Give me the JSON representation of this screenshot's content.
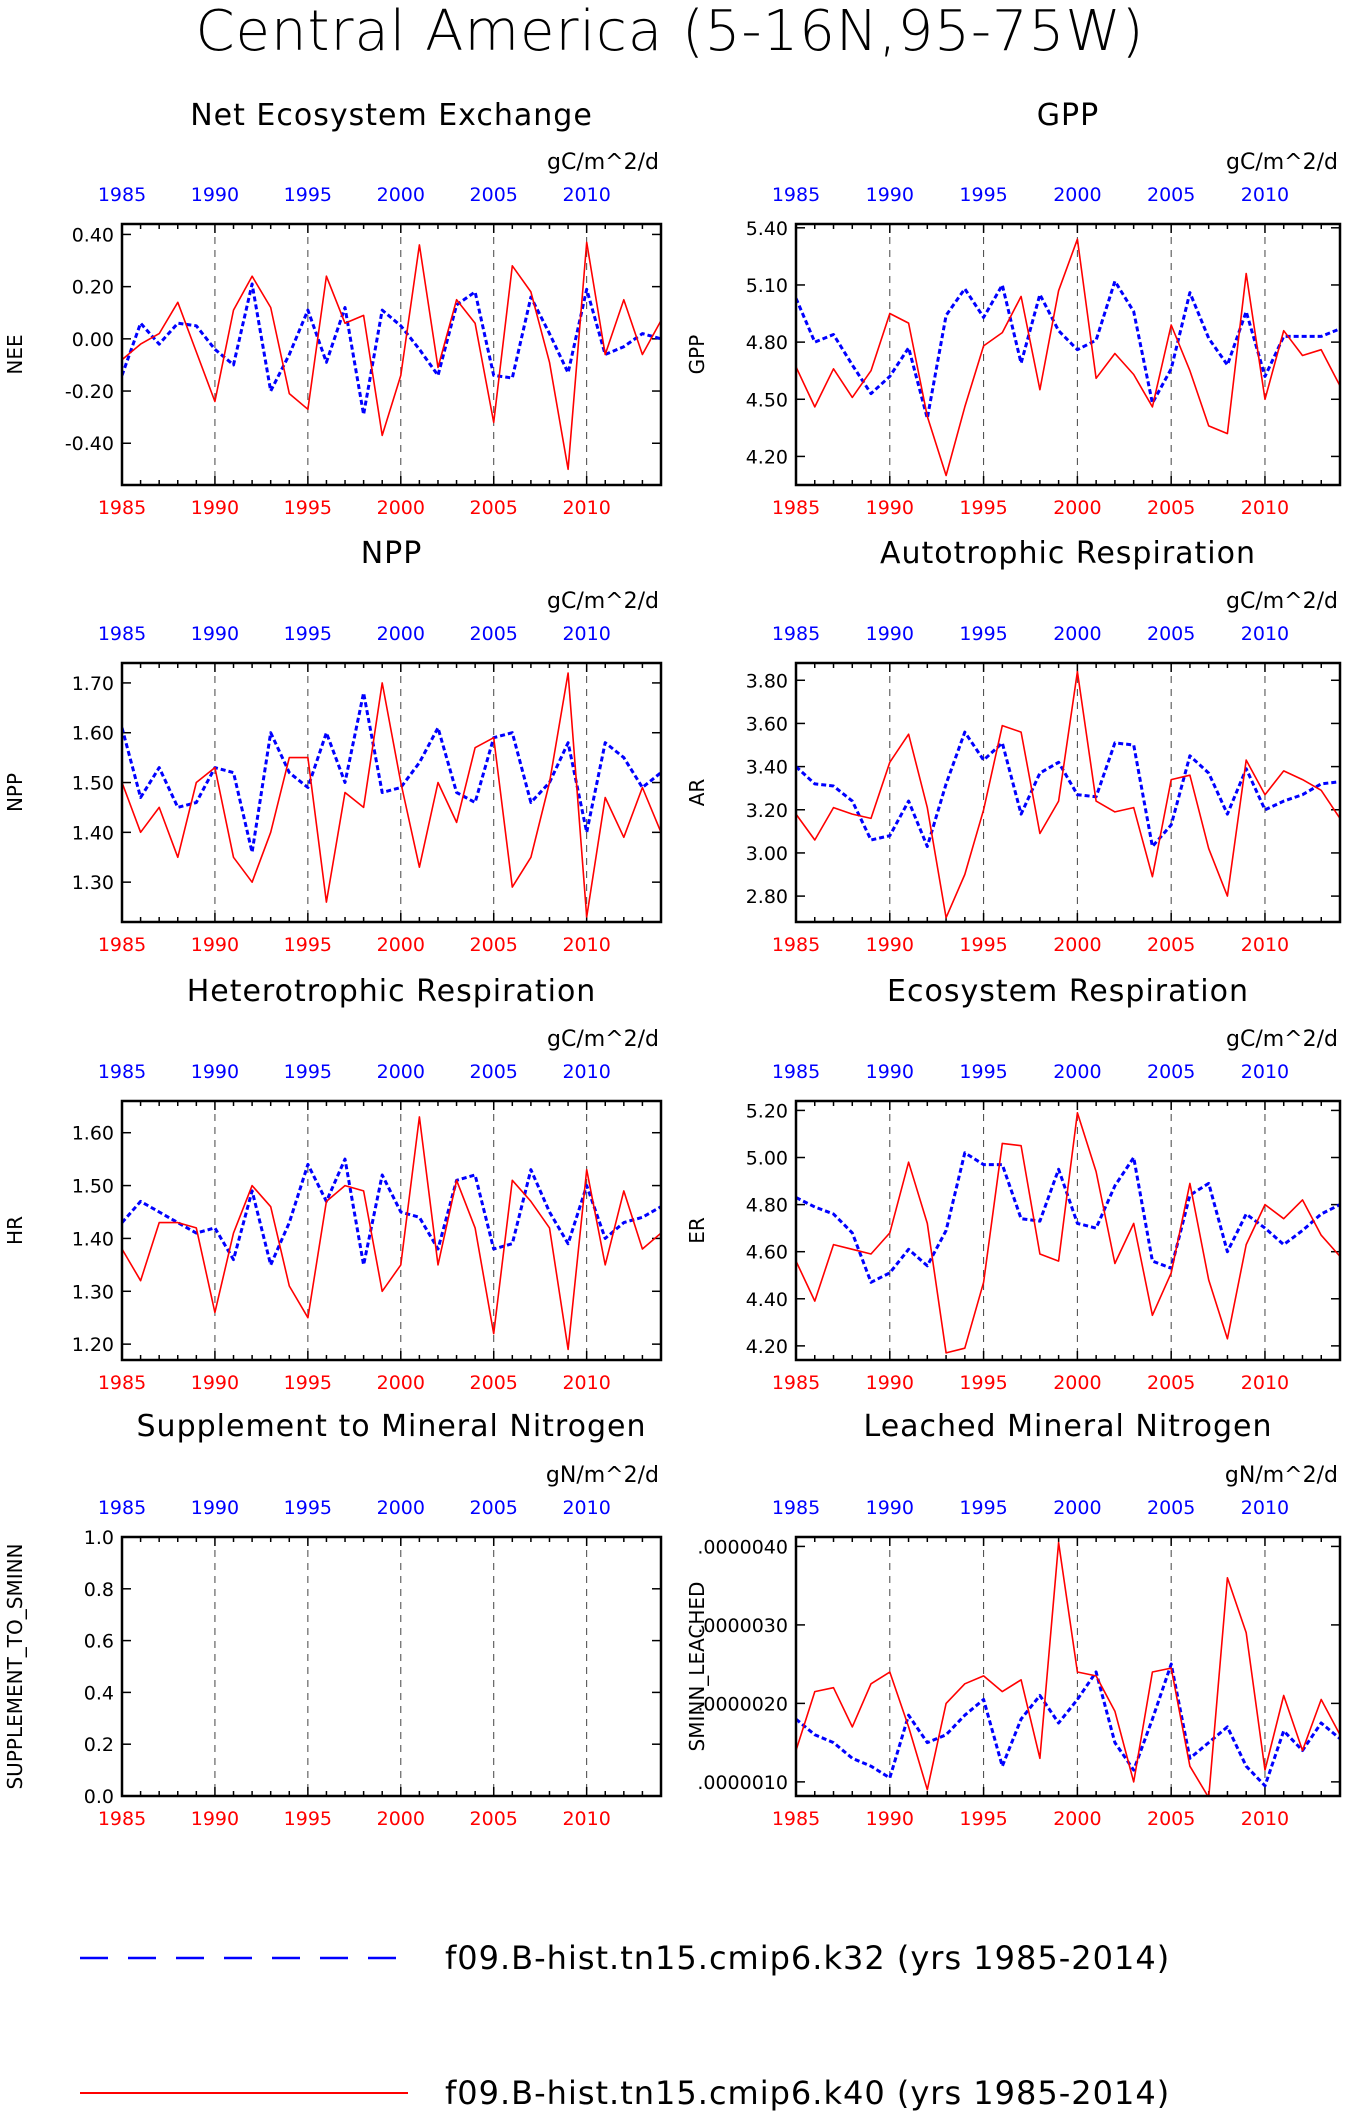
{
  "title": "Central America (5-16N,95-75W)",
  "legend": [
    {
      "label": "f09.B-hist.tn15.cmip6.k32 (yrs 1985-2014)",
      "color": "#0000ff",
      "style": "dash"
    },
    {
      "label": "f09.B-hist.tn15.cmip6.k40 (yrs 1985-2014)",
      "color": "#ff0000",
      "style": "solid"
    }
  ],
  "chart_data": [
    {
      "type": "line",
      "title": "Net Ecosystem Exchange",
      "units": "gC/m^2/d",
      "ylabel": "NEE",
      "xlim": [
        1985,
        2014
      ],
      "ylim": [
        -0.56,
        0.44
      ],
      "yticks": [
        -0.4,
        -0.2,
        0.0,
        0.2,
        0.4
      ],
      "ytick_labels": [
        "-0.40",
        "-0.20",
        "0.00",
        "0.20",
        "0.40"
      ],
      "xticks": [
        1985,
        1990,
        1995,
        2000,
        2005,
        2010
      ],
      "xtick_labels": [
        "1985",
        "1990",
        "1995",
        "2000",
        "2005",
        "2010"
      ],
      "series": [
        {
          "values": [
            -0.14,
            0.06,
            -0.02,
            0.06,
            0.05,
            -0.04,
            -0.1,
            0.21,
            -0.2,
            -0.06,
            0.11,
            -0.09,
            0.12,
            -0.29,
            0.11,
            0.05,
            -0.04,
            -0.14,
            0.13,
            0.18,
            -0.14,
            -0.15,
            0.16,
            0.02,
            -0.13,
            0.19,
            -0.06,
            -0.03,
            0.02,
            0.0
          ]
        },
        {
          "values": [
            -0.08,
            -0.02,
            0.02,
            0.14,
            -0.05,
            -0.24,
            0.11,
            0.24,
            0.12,
            -0.21,
            -0.27,
            0.24,
            0.06,
            0.09,
            -0.37,
            -0.14,
            0.36,
            -0.11,
            0.15,
            0.06,
            -0.32,
            0.28,
            0.18,
            -0.09,
            -0.5,
            0.37,
            -0.06,
            0.15,
            -0.06,
            0.07
          ]
        }
      ]
    },
    {
      "type": "line",
      "title": "GPP",
      "units": "gC/m^2/d",
      "ylabel": "GPP",
      "xlim": [
        1985,
        2014
      ],
      "ylim": [
        4.05,
        5.42
      ],
      "yticks": [
        4.2,
        4.5,
        4.8,
        5.1,
        5.4
      ],
      "ytick_labels": [
        "4.20",
        "4.50",
        "4.80",
        "5.10",
        "5.40"
      ],
      "xticks": [
        1985,
        1990,
        1995,
        2000,
        2005,
        2010
      ],
      "xtick_labels": [
        "1985",
        "1990",
        "1995",
        "2000",
        "2005",
        "2010"
      ],
      "series": [
        {
          "values": [
            5.03,
            4.8,
            4.84,
            4.68,
            4.53,
            4.62,
            4.77,
            4.4,
            4.94,
            5.08,
            4.93,
            5.1,
            4.69,
            5.05,
            4.86,
            4.76,
            4.81,
            5.12,
            4.96,
            4.48,
            4.66,
            5.06,
            4.82,
            4.68,
            4.96,
            4.62,
            4.83,
            4.83,
            4.83,
            4.87
          ]
        },
        {
          "values": [
            4.67,
            4.46,
            4.66,
            4.51,
            4.65,
            4.95,
            4.9,
            4.41,
            4.1,
            4.46,
            4.78,
            4.85,
            5.04,
            4.55,
            5.07,
            5.34,
            4.61,
            4.74,
            4.63,
            4.46,
            4.89,
            4.65,
            4.36,
            4.32,
            5.16,
            4.5,
            4.86,
            4.73,
            4.76,
            4.57
          ]
        }
      ]
    },
    {
      "type": "line",
      "title": "NPP",
      "units": "gC/m^2/d",
      "ylabel": "NPP",
      "xlim": [
        1985,
        2014
      ],
      "ylim": [
        1.22,
        1.74
      ],
      "yticks": [
        1.3,
        1.4,
        1.5,
        1.6,
        1.7
      ],
      "ytick_labels": [
        "1.30",
        "1.40",
        "1.50",
        "1.60",
        "1.70"
      ],
      "xticks": [
        1985,
        1990,
        1995,
        2000,
        2005,
        2010
      ],
      "xtick_labels": [
        "1985",
        "1990",
        "1995",
        "2000",
        "2005",
        "2010"
      ],
      "series": [
        {
          "values": [
            1.61,
            1.47,
            1.53,
            1.45,
            1.46,
            1.53,
            1.52,
            1.36,
            1.6,
            1.52,
            1.49,
            1.6,
            1.5,
            1.68,
            1.48,
            1.49,
            1.54,
            1.61,
            1.48,
            1.46,
            1.59,
            1.6,
            1.46,
            1.5,
            1.58,
            1.4,
            1.58,
            1.55,
            1.49,
            1.52
          ]
        },
        {
          "values": [
            1.5,
            1.4,
            1.45,
            1.35,
            1.5,
            1.53,
            1.35,
            1.3,
            1.4,
            1.55,
            1.55,
            1.26,
            1.48,
            1.45,
            1.7,
            1.5,
            1.33,
            1.5,
            1.42,
            1.57,
            1.59,
            1.29,
            1.35,
            1.5,
            1.72,
            1.23,
            1.47,
            1.39,
            1.49,
            1.4
          ]
        }
      ]
    },
    {
      "type": "line",
      "title": "Autotrophic Respiration",
      "units": "gC/m^2/d",
      "ylabel": "AR",
      "xlim": [
        1985,
        2014
      ],
      "ylim": [
        2.68,
        3.88
      ],
      "yticks": [
        2.8,
        3.0,
        3.2,
        3.4,
        3.6,
        3.8
      ],
      "ytick_labels": [
        "2.80",
        "3.00",
        "3.20",
        "3.40",
        "3.60",
        "3.80"
      ],
      "xticks": [
        1985,
        1990,
        1995,
        2000,
        2005,
        2010
      ],
      "xtick_labels": [
        "1985",
        "1990",
        "1995",
        "2000",
        "2005",
        "2010"
      ],
      "series": [
        {
          "values": [
            3.4,
            3.32,
            3.31,
            3.24,
            3.06,
            3.08,
            3.24,
            3.03,
            3.32,
            3.56,
            3.43,
            3.51,
            3.18,
            3.37,
            3.42,
            3.27,
            3.26,
            3.51,
            3.5,
            3.03,
            3.13,
            3.45,
            3.37,
            3.18,
            3.39,
            3.2,
            3.24,
            3.27,
            3.32,
            3.33
          ]
        },
        {
          "values": [
            3.18,
            3.06,
            3.21,
            3.18,
            3.16,
            3.42,
            3.55,
            3.21,
            2.7,
            2.9,
            3.2,
            3.59,
            3.56,
            3.09,
            3.24,
            3.84,
            3.24,
            3.19,
            3.21,
            2.89,
            3.34,
            3.36,
            3.02,
            2.8,
            3.43,
            3.27,
            3.38,
            3.34,
            3.29,
            3.16
          ]
        }
      ]
    },
    {
      "type": "line",
      "title": "Heterotrophic Respiration",
      "units": "gC/m^2/d",
      "ylabel": "HR",
      "xlim": [
        1985,
        2014
      ],
      "ylim": [
        1.17,
        1.66
      ],
      "yticks": [
        1.2,
        1.3,
        1.4,
        1.5,
        1.6
      ],
      "ytick_labels": [
        "1.20",
        "1.30",
        "1.40",
        "1.50",
        "1.60"
      ],
      "xticks": [
        1985,
        1990,
        1995,
        2000,
        2005,
        2010
      ],
      "xtick_labels": [
        "1985",
        "1990",
        "1995",
        "2000",
        "2005",
        "2010"
      ],
      "series": [
        {
          "values": [
            1.43,
            1.47,
            1.45,
            1.43,
            1.41,
            1.42,
            1.36,
            1.49,
            1.35,
            1.43,
            1.54,
            1.47,
            1.55,
            1.35,
            1.52,
            1.45,
            1.44,
            1.38,
            1.51,
            1.52,
            1.38,
            1.39,
            1.53,
            1.45,
            1.39,
            1.5,
            1.4,
            1.43,
            1.44,
            1.46
          ]
        },
        {
          "values": [
            1.38,
            1.32,
            1.43,
            1.43,
            1.42,
            1.26,
            1.41,
            1.5,
            1.46,
            1.31,
            1.25,
            1.47,
            1.5,
            1.49,
            1.3,
            1.35,
            1.63,
            1.35,
            1.51,
            1.42,
            1.22,
            1.51,
            1.47,
            1.42,
            1.19,
            1.53,
            1.35,
            1.49,
            1.38,
            1.41
          ]
        }
      ]
    },
    {
      "type": "line",
      "title": "Ecosystem Respiration",
      "units": "gC/m^2/d",
      "ylabel": "ER",
      "xlim": [
        1985,
        2014
      ],
      "ylim": [
        4.14,
        5.24
      ],
      "yticks": [
        4.2,
        4.4,
        4.6,
        4.8,
        5.0,
        5.2
      ],
      "ytick_labels": [
        "4.20",
        "4.40",
        "4.60",
        "4.80",
        "5.00",
        "5.20"
      ],
      "xticks": [
        1985,
        1990,
        1995,
        2000,
        2005,
        2010
      ],
      "xtick_labels": [
        "1985",
        "1990",
        "1995",
        "2000",
        "2005",
        "2010"
      ],
      "series": [
        {
          "values": [
            4.83,
            4.79,
            4.76,
            4.68,
            4.47,
            4.51,
            4.61,
            4.54,
            4.69,
            5.02,
            4.97,
            4.97,
            4.74,
            4.73,
            4.95,
            4.72,
            4.7,
            4.88,
            5.0,
            4.56,
            4.53,
            4.84,
            4.89,
            4.6,
            4.76,
            4.7,
            4.63,
            4.69,
            4.76,
            4.8
          ]
        },
        {
          "values": [
            4.56,
            4.39,
            4.63,
            4.61,
            4.59,
            4.68,
            4.98,
            4.72,
            4.17,
            4.19,
            4.47,
            5.06,
            5.05,
            4.59,
            4.56,
            5.19,
            4.94,
            4.55,
            4.72,
            4.33,
            4.51,
            4.89,
            4.48,
            4.23,
            4.63,
            4.8,
            4.74,
            4.82,
            4.67,
            4.58
          ]
        }
      ]
    },
    {
      "type": "line",
      "title": "Supplement to Mineral Nitrogen",
      "units": "gN/m^2/d",
      "ylabel": "SUPPLEMENT_TO_SMINN",
      "xlim": [
        1985,
        2014
      ],
      "ylim": [
        0.0,
        1.0
      ],
      "yticks": [
        0.0,
        0.2,
        0.4,
        0.6,
        0.8,
        1.0
      ],
      "ytick_labels": [
        "0.0",
        "0.2",
        "0.4",
        "0.6",
        "0.8",
        "1.0"
      ],
      "xticks": [
        1985,
        1990,
        1995,
        2000,
        2005,
        2010
      ],
      "xtick_labels": [
        "1985",
        "1990",
        "1995",
        "2000",
        "2005",
        "2010"
      ],
      "series": []
    },
    {
      "type": "line",
      "title": "Leached Mineral Nitrogen",
      "units": "gN/m^2/d",
      "ylabel": "SMINN_LEACHED",
      "xlim": [
        1985,
        2014
      ],
      "ylim": [
        8.2e-07,
        4.12e-06
      ],
      "yticks": [
        1e-06,
        2e-06,
        3e-06,
        4e-06
      ],
      "ytick_labels": [
        ".0000010",
        ".0000020",
        ".0000030",
        ".0000040"
      ],
      "xticks": [
        1985,
        1990,
        1995,
        2000,
        2005,
        2010
      ],
      "xtick_labels": [
        "1985",
        "1990",
        "1995",
        "2000",
        "2005",
        "2010"
      ],
      "series": [
        {
          "values": [
            1.8e-06,
            1.6e-06,
            1.5e-06,
            1.3e-06,
            1.2e-06,
            1.05e-06,
            1.85e-06,
            1.5e-06,
            1.6e-06,
            1.85e-06,
            2.05e-06,
            1.2e-06,
            1.8e-06,
            2.1e-06,
            1.75e-06,
            2.05e-06,
            2.4e-06,
            1.5e-06,
            1.15e-06,
            1.8e-06,
            2.5e-06,
            1.3e-06,
            1.5e-06,
            1.7e-06,
            1.2e-06,
            9.5e-07,
            1.65e-06,
            1.4e-06,
            1.75e-06,
            1.55e-06
          ]
        },
        {
          "values": [
            1.4e-06,
            2.15e-06,
            2.2e-06,
            1.7e-06,
            2.25e-06,
            2.4e-06,
            1.7e-06,
            9e-07,
            2e-06,
            2.25e-06,
            2.35e-06,
            2.15e-06,
            2.3e-06,
            1.3e-06,
            4.05e-06,
            2.4e-06,
            2.35e-06,
            1.9e-06,
            1e-06,
            2.4e-06,
            2.45e-06,
            1.2e-06,
            8e-07,
            3.6e-06,
            2.9e-06,
            1.15e-06,
            2.1e-06,
            1.4e-06,
            2.05e-06,
            1.6e-06
          ]
        }
      ]
    }
  ]
}
